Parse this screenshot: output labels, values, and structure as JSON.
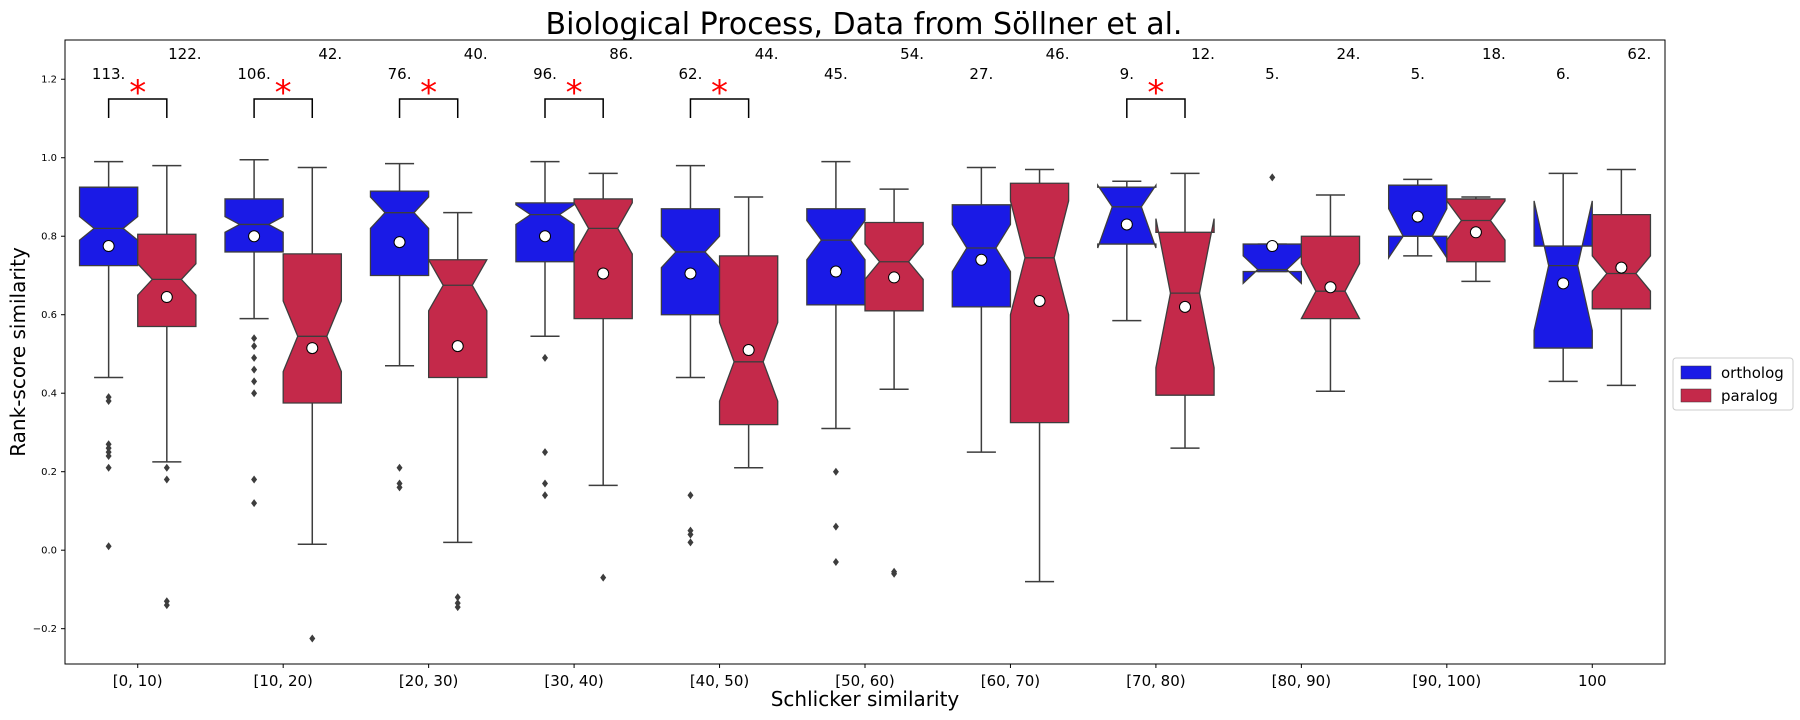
{
  "chart_data": {
    "type": "box",
    "title": "Biological Process, Data from Söllner et al.",
    "xlabel": "Schlicker similarity",
    "ylabel": "Rank-score similarity",
    "ylim": [
      -0.29,
      1.3
    ],
    "yticks": [
      -0.2,
      0.0,
      0.2,
      0.4,
      0.6,
      0.8,
      1.0,
      1.2
    ],
    "ytick_labels": [
      "−0.2",
      "0.0",
      "0.2",
      "0.4",
      "0.6",
      "0.8",
      "1.0",
      "1.2"
    ],
    "grid": false,
    "legend_position": "right",
    "categories": [
      "[0, 10)",
      "[10, 20)",
      "[20, 30)",
      "[30, 40)",
      "[40, 50)",
      "[50, 60)",
      "[60, 70)",
      "[70, 80)",
      "[80, 90)",
      "[90, 100)",
      "100"
    ],
    "series": [
      {
        "name": "ortholog",
        "color": "#1a1ae6",
        "boxes": [
          {
            "low": 0.44,
            "q1": 0.725,
            "median": 0.82,
            "q3": 0.925,
            "high": 0.99,
            "notch_low": 0.79,
            "notch_high": 0.85,
            "mean": 0.775,
            "outliers": [
              0.39,
              0.38,
              0.27,
              0.26,
              0.25,
              0.24,
              0.21,
              0.01
            ]
          },
          {
            "low": 0.59,
            "q1": 0.76,
            "median": 0.83,
            "q3": 0.895,
            "high": 0.995,
            "notch_low": 0.81,
            "notch_high": 0.85,
            "mean": 0.8,
            "outliers": [
              0.54,
              0.52,
              0.49,
              0.46,
              0.43,
              0.4,
              0.18,
              0.12
            ]
          },
          {
            "low": 0.47,
            "q1": 0.7,
            "median": 0.86,
            "q3": 0.915,
            "high": 0.985,
            "notch_low": 0.82,
            "notch_high": 0.9,
            "mean": 0.785,
            "outliers": [
              0.21,
              0.17,
              0.16
            ]
          },
          {
            "low": 0.545,
            "q1": 0.735,
            "median": 0.855,
            "q3": 0.885,
            "high": 0.99,
            "notch_low": 0.83,
            "notch_high": 0.88,
            "mean": 0.8,
            "outliers": [
              0.49,
              0.25,
              0.17,
              0.14
            ]
          },
          {
            "low": 0.44,
            "q1": 0.6,
            "median": 0.76,
            "q3": 0.87,
            "high": 0.98,
            "notch_low": 0.72,
            "notch_high": 0.8,
            "mean": 0.705,
            "outliers": [
              0.14,
              0.05,
              0.04,
              0.02
            ]
          },
          {
            "low": 0.31,
            "q1": 0.625,
            "median": 0.79,
            "q3": 0.87,
            "high": 0.99,
            "notch_low": 0.74,
            "notch_high": 0.84,
            "mean": 0.71,
            "outliers": [
              0.2,
              0.06,
              -0.03
            ]
          },
          {
            "low": 0.25,
            "q1": 0.62,
            "median": 0.77,
            "q3": 0.88,
            "high": 0.975,
            "notch_low": 0.71,
            "notch_high": 0.83,
            "mean": 0.74,
            "outliers": []
          },
          {
            "low": 0.585,
            "q1": 0.78,
            "median": 0.875,
            "q3": 0.925,
            "high": 0.94,
            "notch_low": 0.77,
            "notch_high": 0.93,
            "mean": 0.83,
            "outliers": []
          },
          {
            "low": 0.71,
            "q1": 0.71,
            "median": 0.715,
            "q3": 0.78,
            "high": 0.78,
            "notch_low": 0.68,
            "notch_high": 0.75,
            "mean": 0.775,
            "outliers": [
              0.95
            ]
          },
          {
            "low": 0.75,
            "q1": 0.8,
            "median": 0.8,
            "q3": 0.93,
            "high": 0.945,
            "notch_low": 0.745,
            "notch_high": 0.87,
            "mean": 0.85,
            "outliers": []
          },
          {
            "low": 0.43,
            "q1": 0.515,
            "median": 0.725,
            "q3": 0.775,
            "high": 0.96,
            "notch_low": 0.56,
            "notch_high": 0.89,
            "mean": 0.68,
            "outliers": []
          }
        ]
      },
      {
        "name": "paralog",
        "color": "#c4294a",
        "boxes": [
          {
            "low": 0.225,
            "q1": 0.57,
            "median": 0.69,
            "q3": 0.805,
            "high": 0.98,
            "notch_low": 0.65,
            "notch_high": 0.73,
            "mean": 0.645,
            "outliers": [
              0.21,
              0.18,
              -0.13,
              -0.14
            ]
          },
          {
            "low": 0.015,
            "q1": 0.375,
            "median": 0.545,
            "q3": 0.755,
            "high": 0.975,
            "notch_low": 0.455,
            "notch_high": 0.635,
            "mean": 0.515,
            "outliers": [
              -0.225
            ]
          },
          {
            "low": 0.02,
            "q1": 0.44,
            "median": 0.675,
            "q3": 0.74,
            "high": 0.86,
            "notch_low": 0.61,
            "notch_high": 0.74,
            "mean": 0.52,
            "outliers": [
              -0.12,
              -0.135,
              -0.145
            ]
          },
          {
            "low": 0.165,
            "q1": 0.59,
            "median": 0.82,
            "q3": 0.895,
            "high": 0.96,
            "notch_low": 0.755,
            "notch_high": 0.885,
            "mean": 0.705,
            "outliers": [
              -0.07
            ]
          },
          {
            "low": 0.21,
            "q1": 0.32,
            "median": 0.48,
            "q3": 0.75,
            "high": 0.9,
            "notch_low": 0.38,
            "notch_high": 0.58,
            "mean": 0.51,
            "outliers": []
          },
          {
            "low": 0.41,
            "q1": 0.61,
            "median": 0.735,
            "q3": 0.835,
            "high": 0.92,
            "notch_low": 0.69,
            "notch_high": 0.78,
            "mean": 0.695,
            "outliers": [
              -0.055,
              -0.06
            ]
          },
          {
            "low": -0.08,
            "q1": 0.325,
            "median": 0.745,
            "q3": 0.935,
            "high": 0.97,
            "notch_low": 0.6,
            "notch_high": 0.89,
            "mean": 0.635,
            "outliers": []
          },
          {
            "low": 0.26,
            "q1": 0.395,
            "median": 0.655,
            "q3": 0.81,
            "high": 0.96,
            "notch_low": 0.465,
            "notch_high": 0.845,
            "mean": 0.62,
            "outliers": []
          },
          {
            "low": 0.405,
            "q1": 0.59,
            "median": 0.66,
            "q3": 0.8,
            "high": 0.905,
            "notch_low": 0.59,
            "notch_high": 0.73,
            "mean": 0.67,
            "outliers": []
          },
          {
            "low": 0.685,
            "q1": 0.735,
            "median": 0.84,
            "q3": 0.895,
            "high": 0.9,
            "notch_low": 0.79,
            "notch_high": 0.89,
            "mean": 0.81,
            "outliers": []
          },
          {
            "low": 0.42,
            "q1": 0.615,
            "median": 0.705,
            "q3": 0.855,
            "high": 0.97,
            "notch_low": 0.66,
            "notch_high": 0.75,
            "mean": 0.72,
            "outliers": []
          }
        ]
      }
    ],
    "annotations": [
      {
        "category": 0,
        "ortholog_count": "113.",
        "paralog_count": "122.",
        "significant": true
      },
      {
        "category": 1,
        "ortholog_count": "106.",
        "paralog_count": "42.",
        "significant": true
      },
      {
        "category": 2,
        "ortholog_count": "76.",
        "paralog_count": "40.",
        "significant": true
      },
      {
        "category": 3,
        "ortholog_count": "96.",
        "paralog_count": "86.",
        "significant": true
      },
      {
        "category": 4,
        "ortholog_count": "62.",
        "paralog_count": "44.",
        "significant": true
      },
      {
        "category": 5,
        "ortholog_count": "45.",
        "paralog_count": "54.",
        "significant": false
      },
      {
        "category": 6,
        "ortholog_count": "27.",
        "paralog_count": "46.",
        "significant": false
      },
      {
        "category": 7,
        "ortholog_count": "9.",
        "paralog_count": "12.",
        "significant": true
      },
      {
        "category": 8,
        "ortholog_count": "5.",
        "paralog_count": "24.",
        "significant": false
      },
      {
        "category": 9,
        "ortholog_count": "5.",
        "paralog_count": "18.",
        "significant": false
      },
      {
        "category": 10,
        "ortholog_count": "6.",
        "paralog_count": "62.",
        "significant": false
      }
    ],
    "significance_marker": "*",
    "legend": [
      {
        "label": "ortholog",
        "color": "#1a1ae6"
      },
      {
        "label": "paralog",
        "color": "#c4294a"
      }
    ]
  }
}
